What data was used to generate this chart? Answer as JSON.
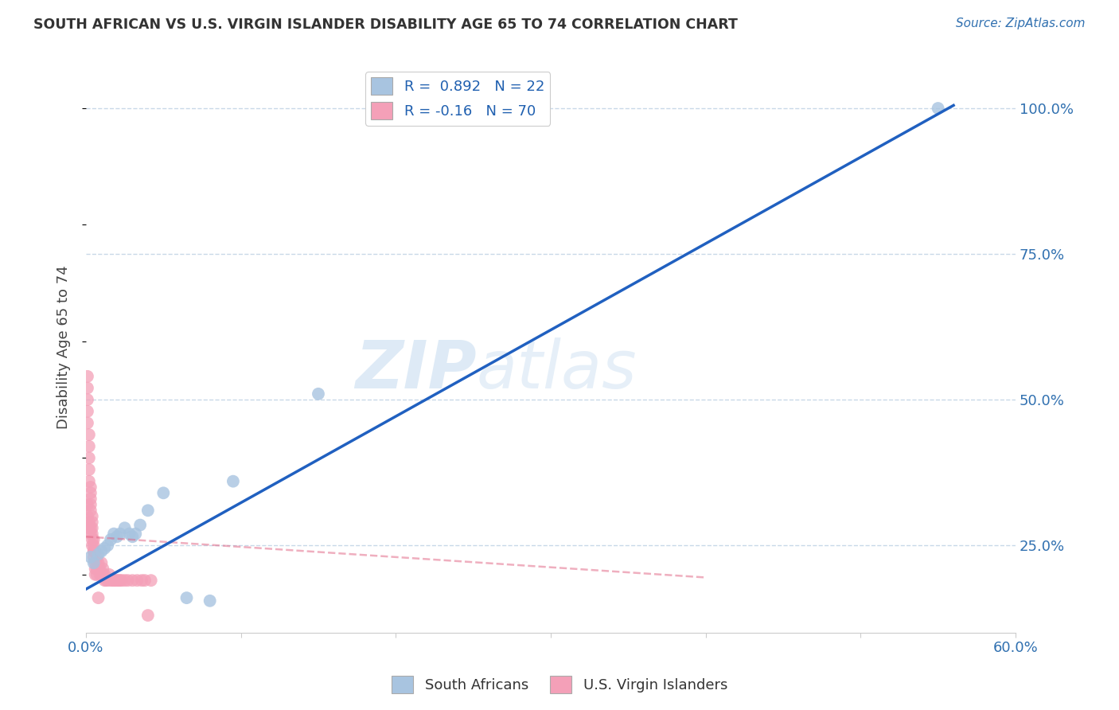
{
  "title": "SOUTH AFRICAN VS U.S. VIRGIN ISLANDER DISABILITY AGE 65 TO 74 CORRELATION CHART",
  "source": "Source: ZipAtlas.com",
  "ylabel": "Disability Age 65 to 74",
  "xlim": [
    0.0,
    0.6
  ],
  "ylim": [
    0.1,
    1.08
  ],
  "xticks": [
    0.0,
    0.1,
    0.2,
    0.3,
    0.4,
    0.5,
    0.6
  ],
  "xticklabels": [
    "0.0%",
    "",
    "",
    "",
    "",
    "",
    "60.0%"
  ],
  "yticks_right": [
    0.25,
    0.5,
    0.75,
    1.0
  ],
  "ytick_labels_right": [
    "25.0%",
    "50.0%",
    "75.0%",
    "100.0%"
  ],
  "blue_R": 0.892,
  "blue_N": 22,
  "pink_R": -0.16,
  "pink_N": 70,
  "blue_color": "#a8c4e0",
  "pink_color": "#f4a0b8",
  "blue_line_color": "#2060c0",
  "pink_line_color": "#e06080",
  "background_color": "#ffffff",
  "grid_color": "#c8d8e8",
  "watermark_zip": "ZIP",
  "watermark_atlas": "atlas",
  "legend_labels": [
    "South Africans",
    "U.S. Virgin Islanders"
  ],
  "blue_line_x0": 0.0,
  "blue_line_x1": 0.56,
  "blue_line_y0": 0.175,
  "blue_line_y1": 1.005,
  "pink_line_x0": 0.0,
  "pink_line_x1": 0.4,
  "pink_line_y0": 0.265,
  "pink_line_y1": 0.195,
  "blue_scatter_x": [
    0.003,
    0.005,
    0.008,
    0.01,
    0.012,
    0.014,
    0.016,
    0.018,
    0.02,
    0.022,
    0.025,
    0.028,
    0.03,
    0.032,
    0.035,
    0.04,
    0.05,
    0.065,
    0.08,
    0.095,
    0.15,
    0.55
  ],
  "blue_scatter_y": [
    0.23,
    0.22,
    0.235,
    0.24,
    0.245,
    0.25,
    0.26,
    0.27,
    0.265,
    0.27,
    0.28,
    0.27,
    0.265,
    0.27,
    0.285,
    0.31,
    0.34,
    0.16,
    0.155,
    0.36,
    0.51,
    1.0
  ],
  "pink_scatter_x": [
    0.001,
    0.001,
    0.001,
    0.001,
    0.001,
    0.002,
    0.002,
    0.002,
    0.002,
    0.002,
    0.003,
    0.003,
    0.003,
    0.003,
    0.003,
    0.004,
    0.004,
    0.004,
    0.004,
    0.005,
    0.005,
    0.005,
    0.005,
    0.006,
    0.006,
    0.006,
    0.007,
    0.007,
    0.007,
    0.008,
    0.008,
    0.009,
    0.009,
    0.01,
    0.01,
    0.011,
    0.011,
    0.012,
    0.012,
    0.013,
    0.014,
    0.015,
    0.016,
    0.017,
    0.018,
    0.019,
    0.02,
    0.021,
    0.022,
    0.023,
    0.025,
    0.027,
    0.03,
    0.033,
    0.036,
    0.038,
    0.04,
    0.042,
    0.001,
    0.001,
    0.002,
    0.002,
    0.003,
    0.003,
    0.004,
    0.004,
    0.005,
    0.006,
    0.007,
    0.008
  ],
  "pink_scatter_y": [
    0.54,
    0.52,
    0.5,
    0.48,
    0.46,
    0.44,
    0.42,
    0.4,
    0.38,
    0.36,
    0.35,
    0.34,
    0.33,
    0.32,
    0.31,
    0.3,
    0.29,
    0.28,
    0.27,
    0.26,
    0.25,
    0.24,
    0.23,
    0.22,
    0.21,
    0.2,
    0.22,
    0.21,
    0.2,
    0.22,
    0.21,
    0.21,
    0.2,
    0.2,
    0.22,
    0.2,
    0.21,
    0.19,
    0.2,
    0.19,
    0.19,
    0.2,
    0.19,
    0.19,
    0.19,
    0.19,
    0.19,
    0.19,
    0.19,
    0.19,
    0.19,
    0.19,
    0.19,
    0.19,
    0.19,
    0.19,
    0.13,
    0.19,
    0.3,
    0.32,
    0.28,
    0.29,
    0.27,
    0.28,
    0.25,
    0.26,
    0.24,
    0.24,
    0.23,
    0.16
  ]
}
